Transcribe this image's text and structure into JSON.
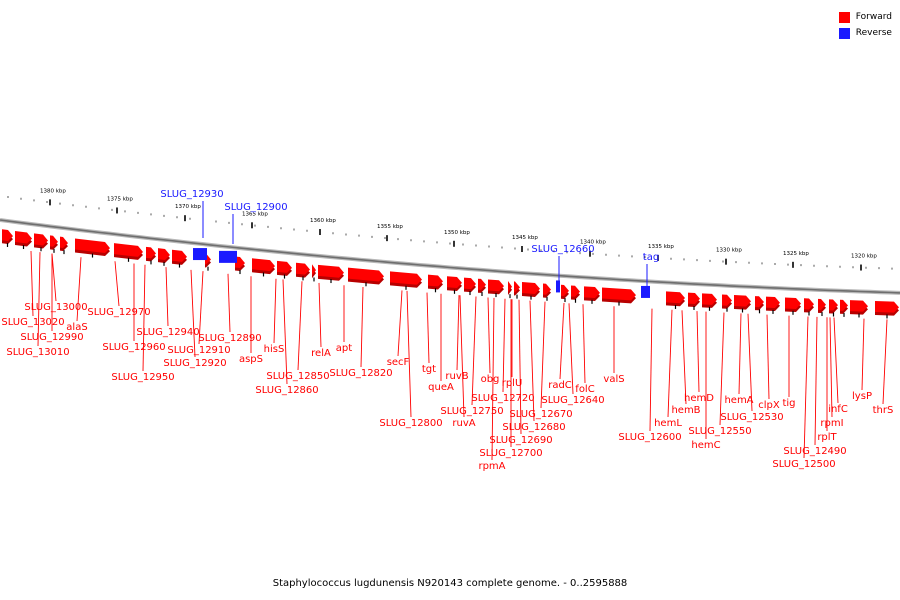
{
  "colors": {
    "forward": "#ff0000",
    "reverse": "#1a1aff",
    "backbone": "#808080"
  },
  "legend": [
    {
      "label": "Forward",
      "color": "#ff0000"
    },
    {
      "label": "Reverse",
      "color": "#1a1aff"
    }
  ],
  "caption": "Staphylococcus lugdunensis N920143 complete genome. - 0..2595888",
  "ticks": [
    "1380 kbp",
    "1375 kbp",
    "1370 kbp",
    "1365 kbp",
    "1360 kbp",
    "1355 kbp",
    "1350 kbp",
    "1345 kbp",
    "1340 kbp",
    "1335 kbp",
    "1330 kbp",
    "1325 kbp",
    "1320 kbp"
  ],
  "reverse_genes": [
    "SLUG_12930",
    "SLUG_12900",
    "SLUG_12660",
    "tag"
  ],
  "forward_genes": [
    "SLUG_13000",
    "SLUG_13020",
    "SLUG_12990",
    "SLUG_13010",
    "alaS",
    "SLUG_12970",
    "SLUG_12940",
    "SLUG_12960",
    "SLUG_12950",
    "SLUG_12910",
    "SLUG_12920",
    "SLUG_12890",
    "aspS",
    "hisS",
    "SLUG_12850",
    "SLUG_12860",
    "relA",
    "apt",
    "SLUG_12820",
    "secF",
    "SLUG_12800",
    "tgt",
    "queA",
    "ruvB",
    "SLUG_12750",
    "ruvA",
    "obg",
    "rplU",
    "SLUG_12720",
    "SLUG_12670",
    "SLUG_12680",
    "SLUG_12690",
    "SLUG_12700",
    "rpmA",
    "radC",
    "SLUG_12640",
    "folC",
    "valS",
    "SLUG_12600",
    "hemL",
    "hemB",
    "hemD",
    "hemC",
    "hemA",
    "SLUG_12550",
    "SLUG_12530",
    "clpX",
    "tig",
    "SLUG_12490",
    "SLUG_12500",
    "infC",
    "rpmI",
    "rplT",
    "lysP",
    "thrS"
  ]
}
